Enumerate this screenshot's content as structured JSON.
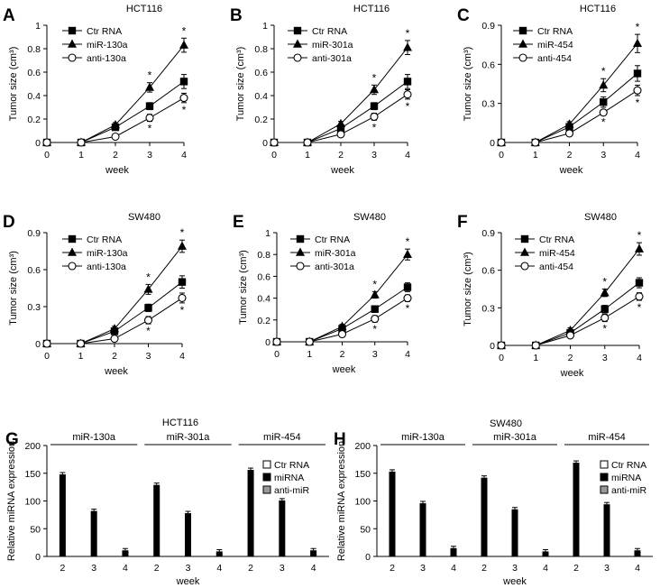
{
  "chart_data": [
    {
      "type": "line",
      "panel": "A",
      "title": "HCT116",
      "xlabel": "week",
      "ylabel": "Tumor size (cm³)",
      "x": [
        0,
        1,
        2,
        3,
        4
      ],
      "xlim": [
        0,
        4
      ],
      "ylim": [
        0,
        1
      ],
      "yticks": [
        "0",
        "0.2",
        "0.4",
        "0.6",
        "0.8",
        "1"
      ],
      "series": [
        {
          "name": "Ctr RNA",
          "marker": "square",
          "values": [
            0,
            0,
            0.13,
            0.31,
            0.52
          ],
          "errors": [
            0,
            0,
            0.02,
            0.03,
            0.06
          ]
        },
        {
          "name": "miR-130a",
          "marker": "triangle",
          "values": [
            0,
            0,
            0.15,
            0.47,
            0.83
          ],
          "errors": [
            0,
            0,
            0.02,
            0.04,
            0.06
          ]
        },
        {
          "name": "anti-130a",
          "marker": "circle",
          "values": [
            0,
            0,
            0.05,
            0.21,
            0.38
          ],
          "errors": [
            0,
            0,
            0.01,
            0.03,
            0.04
          ]
        }
      ],
      "significance": [
        {
          "x": 3,
          "label": "*"
        },
        {
          "x": 4,
          "label": "*"
        }
      ]
    },
    {
      "type": "line",
      "panel": "B",
      "title": "HCT116",
      "xlabel": "week",
      "ylabel": "Tumor size (cm³)",
      "x": [
        0,
        1,
        2,
        3,
        4
      ],
      "xlim": [
        0,
        4
      ],
      "ylim": [
        0,
        1
      ],
      "yticks": [
        "0",
        "0.2",
        "0.4",
        "0.6",
        "0.8",
        "1"
      ],
      "series": [
        {
          "name": "Ctr RNA",
          "marker": "square",
          "values": [
            0,
            0,
            0.12,
            0.31,
            0.52
          ],
          "errors": [
            0,
            0,
            0.02,
            0.03,
            0.06
          ]
        },
        {
          "name": "miR-301a",
          "marker": "triangle",
          "values": [
            0,
            0,
            0.16,
            0.45,
            0.81
          ],
          "errors": [
            0,
            0,
            0.02,
            0.04,
            0.06
          ]
        },
        {
          "name": "anti-301a",
          "marker": "circle",
          "values": [
            0,
            0,
            0.07,
            0.22,
            0.41
          ],
          "errors": [
            0,
            0,
            0.01,
            0.03,
            0.04
          ]
        }
      ],
      "significance": [
        {
          "x": 3,
          "label": "*"
        },
        {
          "x": 4,
          "label": "*"
        }
      ]
    },
    {
      "type": "line",
      "panel": "C",
      "title": "HCT116",
      "xlabel": "week",
      "ylabel": "Tumor size (cm³)",
      "x": [
        0,
        1,
        2,
        3,
        4
      ],
      "xlim": [
        0,
        4
      ],
      "ylim": [
        0,
        0.9
      ],
      "yticks": [
        "0",
        "0.3",
        "0.6",
        "0.9"
      ],
      "series": [
        {
          "name": "Ctr RNA",
          "marker": "square",
          "values": [
            0,
            0,
            0.12,
            0.31,
            0.53
          ],
          "errors": [
            0,
            0,
            0.02,
            0.04,
            0.06
          ]
        },
        {
          "name": "miR-454",
          "marker": "triangle",
          "values": [
            0,
            0,
            0.14,
            0.44,
            0.76
          ],
          "errors": [
            0,
            0,
            0.02,
            0.05,
            0.07
          ]
        },
        {
          "name": "anti-454",
          "marker": "circle",
          "values": [
            0,
            0,
            0.07,
            0.23,
            0.4
          ],
          "errors": [
            0,
            0,
            0.01,
            0.02,
            0.04
          ]
        }
      ],
      "significance": [
        {
          "x": 3,
          "label": "*"
        },
        {
          "x": 4,
          "label": "*"
        }
      ]
    },
    {
      "type": "line",
      "panel": "D",
      "title": "SW480",
      "xlabel": "week",
      "ylabel": "Tumor size (cm³)",
      "x": [
        0,
        1,
        2,
        3,
        4
      ],
      "xlim": [
        0,
        4
      ],
      "ylim": [
        0,
        0.9
      ],
      "yticks": [
        "0",
        "0.3",
        "0.6",
        "0.9"
      ],
      "series": [
        {
          "name": "Ctr RNA",
          "marker": "square",
          "values": [
            0,
            0,
            0.1,
            0.29,
            0.5
          ],
          "errors": [
            0,
            0,
            0.02,
            0.03,
            0.05
          ]
        },
        {
          "name": "miR-130a",
          "marker": "triangle",
          "values": [
            0,
            0,
            0.12,
            0.44,
            0.79
          ],
          "errors": [
            0,
            0,
            0.02,
            0.04,
            0.05
          ]
        },
        {
          "name": "anti-130a",
          "marker": "circle",
          "values": [
            0,
            0,
            0.04,
            0.19,
            0.37
          ],
          "errors": [
            0,
            0,
            0.01,
            0.03,
            0.04
          ]
        }
      ],
      "significance": [
        {
          "x": 3,
          "label": "*"
        },
        {
          "x": 4,
          "label": "*"
        }
      ]
    },
    {
      "type": "line",
      "panel": "E",
      "title": "SW480",
      "xlabel": "week",
      "ylabel": "Tumor size (cm³)",
      "x": [
        0,
        1,
        2,
        3,
        4
      ],
      "xlim": [
        0,
        4
      ],
      "ylim": [
        0,
        1
      ],
      "yticks": [
        "0",
        "0.2",
        "0.4",
        "0.6",
        "0.8",
        "1"
      ],
      "series": [
        {
          "name": "Ctr RNA",
          "marker": "square",
          "values": [
            0,
            0,
            0.12,
            0.3,
            0.5
          ],
          "errors": [
            0,
            0,
            0.02,
            0.03,
            0.04
          ]
        },
        {
          "name": "miR-301a",
          "marker": "triangle",
          "values": [
            0,
            0,
            0.14,
            0.43,
            0.8
          ],
          "errors": [
            0,
            0,
            0.02,
            0.03,
            0.05
          ]
        },
        {
          "name": "anti-301a",
          "marker": "circle",
          "values": [
            0,
            0,
            0.07,
            0.21,
            0.4
          ],
          "errors": [
            0,
            0,
            0.01,
            0.03,
            0.03
          ]
        }
      ],
      "significance": [
        {
          "x": 3,
          "label": "*"
        },
        {
          "x": 4,
          "label": "*"
        }
      ]
    },
    {
      "type": "line",
      "panel": "F",
      "title": "SW480",
      "xlabel": "week",
      "ylabel": "Tumor size (cm³)",
      "x": [
        0,
        1,
        2,
        3,
        4
      ],
      "xlim": [
        0,
        4
      ],
      "ylim": [
        0,
        0.9
      ],
      "yticks": [
        "0",
        "0.3",
        "0.6",
        "0.9"
      ],
      "series": [
        {
          "name": "Ctr RNA",
          "marker": "square",
          "values": [
            0,
            0,
            0.1,
            0.29,
            0.5
          ],
          "errors": [
            0,
            0,
            0.02,
            0.03,
            0.04
          ]
        },
        {
          "name": "miR-454",
          "marker": "triangle",
          "values": [
            0,
            0,
            0.12,
            0.42,
            0.77
          ],
          "errors": [
            0,
            0,
            0.02,
            0.03,
            0.05
          ]
        },
        {
          "name": "anti-454",
          "marker": "circle",
          "values": [
            0,
            0,
            0.08,
            0.22,
            0.39
          ],
          "errors": [
            0,
            0,
            0.01,
            0.03,
            0.03
          ]
        }
      ],
      "significance": [
        {
          "x": 3,
          "label": "*"
        },
        {
          "x": 4,
          "label": "*"
        }
      ]
    },
    {
      "type": "bar",
      "panel": "G",
      "title": "HCT116",
      "xlabel": "week",
      "ylabel": "Relative miRNA expression",
      "ylim": [
        0,
        200
      ],
      "yticks": [
        "0",
        "50",
        "100",
        "150",
        "200"
      ],
      "legend": [
        "Ctr RNA",
        "miRNA",
        "anti-miR"
      ],
      "groups": [
        {
          "name": "miR-130a",
          "categories": [
            "2",
            "3",
            "4"
          ],
          "values": [
            148,
            82,
            11
          ]
        },
        {
          "name": "miR-301a",
          "categories": [
            "2",
            "3",
            "4"
          ],
          "values": [
            129,
            78,
            9
          ]
        },
        {
          "name": "miR-454",
          "categories": [
            "2",
            "3",
            "4"
          ],
          "values": [
            156,
            101,
            11
          ]
        }
      ]
    },
    {
      "type": "bar",
      "panel": "H",
      "title": "SW480",
      "xlabel": "week",
      "ylabel": "Relative miRNA expression",
      "ylim": [
        0,
        200
      ],
      "yticks": [
        "0",
        "50",
        "100",
        "150",
        "200"
      ],
      "legend": [
        "Ctr RNA",
        "miRNA",
        "anti-miR"
      ],
      "groups": [
        {
          "name": "miR-130a",
          "categories": [
            "2",
            "3",
            "4"
          ],
          "values": [
            153,
            96,
            15
          ]
        },
        {
          "name": "miR-301a",
          "categories": [
            "2",
            "3",
            "4"
          ],
          "values": [
            142,
            85,
            9
          ]
        },
        {
          "name": "miR-454",
          "categories": [
            "2",
            "3",
            "4"
          ],
          "values": [
            169,
            94,
            11
          ]
        }
      ]
    }
  ],
  "colors": {
    "ink": "#000000",
    "grey_bar": "#999999",
    "background": "#ffffff"
  }
}
